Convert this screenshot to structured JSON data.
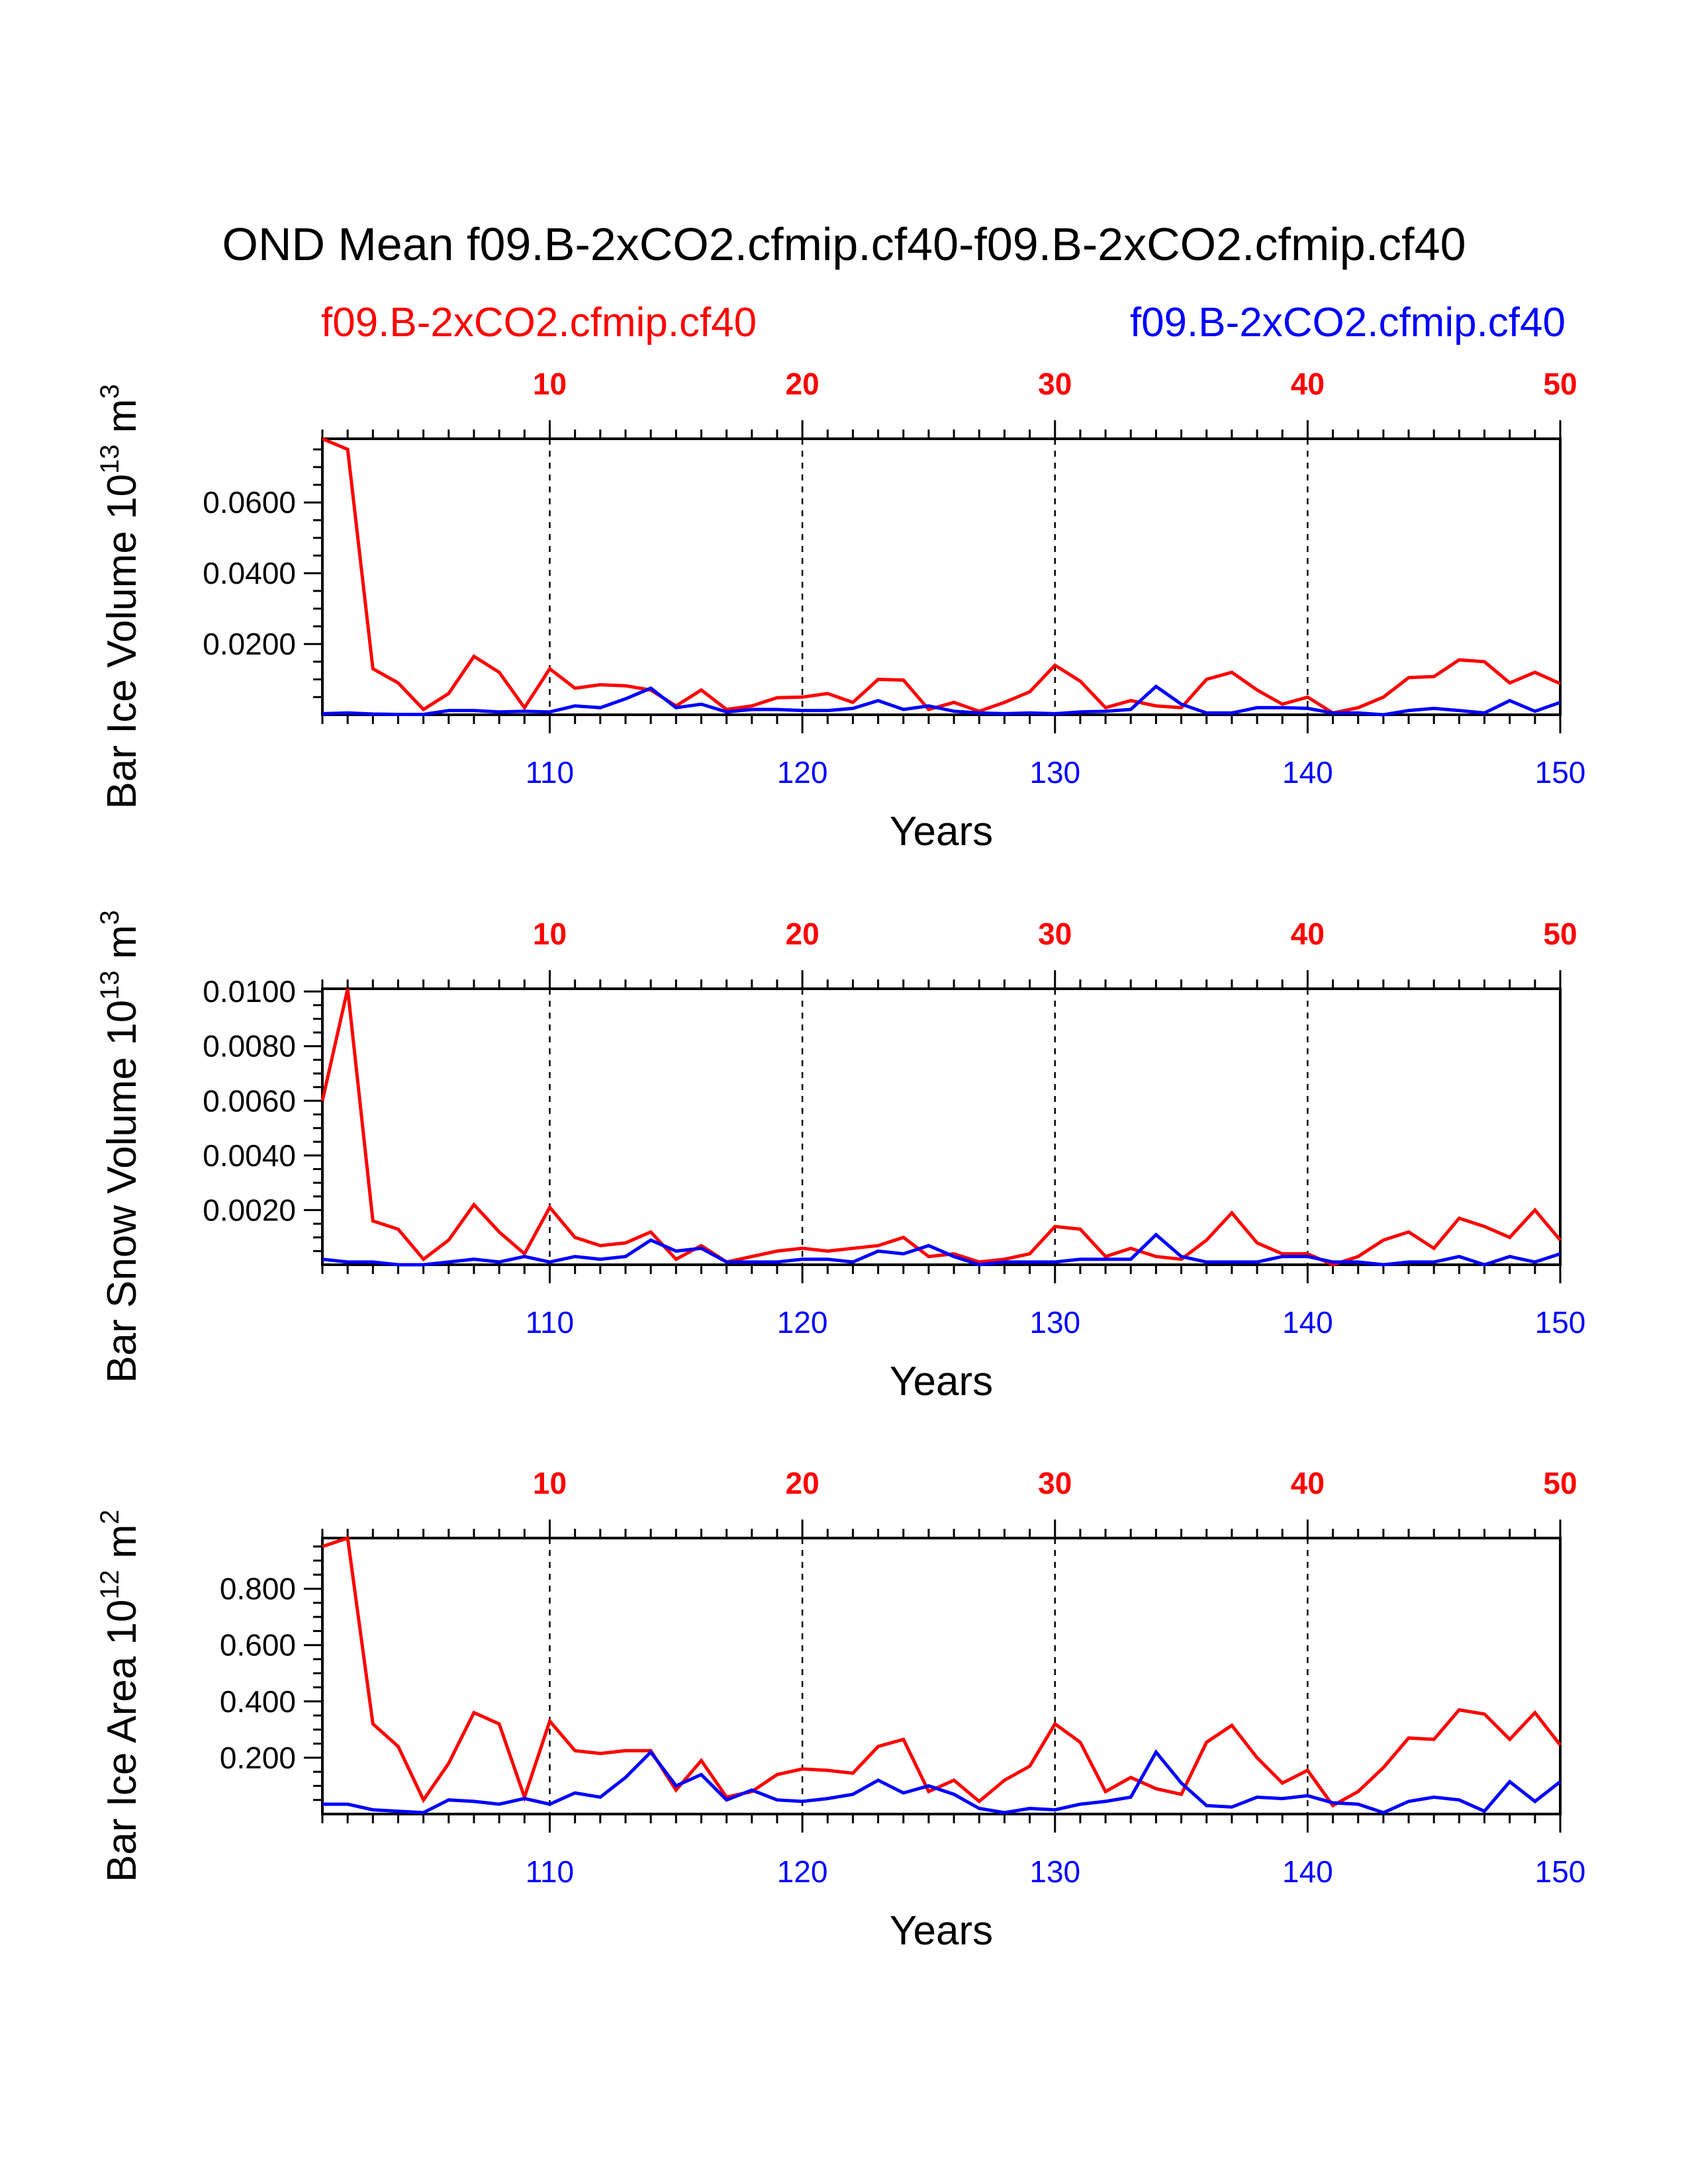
{
  "title": "OND Mean f09.B-2xCO2.cfmip.cf40-f09.B-2xCO2.cfmip.cf40",
  "legend": {
    "left_label": "f09.B-2xCO2.cfmip.cf40",
    "right_label": "f09.B-2xCO2.cfmip.cf40",
    "left_color": "#ff0000",
    "right_color": "#0000ff"
  },
  "chart_data": [
    {
      "type": "line",
      "ylabel": "Bar Ice Volume 10",
      "ylabel_exp": "13",
      "ylabel_unit": " m",
      "ylabel_unit_exp": "3",
      "xlabel": "Years",
      "top_x": {
        "range": [
          1,
          50
        ],
        "ticks": [
          "10",
          "20",
          "30",
          "40",
          "50"
        ],
        "color": "#ff0000"
      },
      "bottom_x": {
        "range": [
          101,
          150
        ],
        "ticks": [
          "110",
          "120",
          "130",
          "140",
          "150"
        ],
        "color": "#0000ff"
      },
      "ylim": [
        0,
        0.078
      ],
      "yticks": [
        0.02,
        0.04,
        0.06
      ],
      "ytick_labels": [
        "0.0200",
        "0.0400",
        "0.0600"
      ],
      "series": [
        {
          "name": "f09.B-2xCO2.cfmip.cf40",
          "color": "#ff0000",
          "values": [
            0.078,
            0.075,
            0.013,
            0.009,
            0.0015,
            0.006,
            0.0165,
            0.012,
            0.002,
            0.013,
            0.0075,
            0.0085,
            0.0082,
            0.007,
            0.0025,
            0.007,
            0.0015,
            0.0025,
            0.0048,
            0.005,
            0.006,
            0.0035,
            0.01,
            0.0098,
            0.0015,
            0.0035,
            0.001,
            0.0035,
            0.0065,
            0.014,
            0.0095,
            0.002,
            0.004,
            0.0025,
            0.002,
            0.01,
            0.012,
            0.007,
            0.003,
            0.005,
            0.0005,
            0.002,
            0.005,
            0.0105,
            0.0108,
            0.0155,
            0.015,
            0.009,
            0.012,
            0.0088
          ]
        },
        {
          "name": "f09.B-2xCO2.cfmip.cf40",
          "color": "#0000ff",
          "values": [
            0.0003,
            0.0005,
            0.0002,
            0.0001,
            0.0001,
            0.0012,
            0.0012,
            0.0008,
            0.001,
            0.0008,
            0.0025,
            0.002,
            0.0045,
            0.0075,
            0.002,
            0.003,
            0.0008,
            0.0015,
            0.0015,
            0.0012,
            0.0012,
            0.0018,
            0.004,
            0.0015,
            0.0025,
            0.001,
            0.0005,
            0.0003,
            0.0005,
            0.0003,
            0.0008,
            0.001,
            0.0015,
            0.008,
            0.003,
            0.0005,
            0.0005,
            0.002,
            0.002,
            0.0018,
            0.0005,
            0.0005,
            0.0,
            0.0012,
            0.0018,
            0.0012,
            0.0005,
            0.004,
            0.001,
            0.0035
          ]
        }
      ]
    },
    {
      "type": "line",
      "ylabel": "Bar Snow Volume 10",
      "ylabel_exp": "13",
      "ylabel_unit": " m",
      "ylabel_unit_exp": "3",
      "xlabel": "Years",
      "top_x": {
        "range": [
          1,
          50
        ],
        "ticks": [
          "10",
          "20",
          "30",
          "40",
          "50"
        ],
        "color": "#ff0000"
      },
      "bottom_x": {
        "range": [
          101,
          150
        ],
        "ticks": [
          "110",
          "120",
          "130",
          "140",
          "150"
        ],
        "color": "#0000ff"
      },
      "ylim": [
        0,
        0.0101
      ],
      "yticks": [
        0.002,
        0.004,
        0.006,
        0.008,
        0.01
      ],
      "ytick_labels": [
        "0.0020",
        "0.0040",
        "0.0060",
        "0.0080",
        "0.0100"
      ],
      "series": [
        {
          "name": "f09.B-2xCO2.cfmip.cf40",
          "color": "#ff0000",
          "values": [
            0.006,
            0.0101,
            0.0016,
            0.0013,
            0.0002,
            0.0009,
            0.0022,
            0.0012,
            0.0004,
            0.0021,
            0.001,
            0.0007,
            0.0008,
            0.0012,
            0.0002,
            0.0007,
            0.0001,
            0.0003,
            0.0005,
            0.0006,
            0.0005,
            0.0006,
            0.0007,
            0.001,
            0.0003,
            0.0004,
            0.0001,
            0.0002,
            0.0004,
            0.0014,
            0.0013,
            0.0003,
            0.0006,
            0.0003,
            0.0002,
            0.0009,
            0.0019,
            0.0008,
            0.0004,
            0.0004,
            0.0,
            0.0003,
            0.0009,
            0.0012,
            0.0006,
            0.0017,
            0.0014,
            0.001,
            0.002,
            0.0009
          ]
        },
        {
          "name": "f09.B-2xCO2.cfmip.cf40",
          "color": "#0000ff",
          "values": [
            0.0002,
            0.0001,
            0.0001,
            0.0,
            0.0,
            0.0001,
            0.0002,
            0.0001,
            0.0003,
            0.0001,
            0.0003,
            0.0002,
            0.0003,
            0.0009,
            0.0005,
            0.0006,
            0.0001,
            0.0001,
            0.0001,
            0.0002,
            0.0002,
            0.0001,
            0.0005,
            0.0004,
            0.0007,
            0.0003,
            0.0,
            0.0001,
            0.0001,
            0.0001,
            0.0002,
            0.0002,
            0.0002,
            0.0011,
            0.0003,
            0.0001,
            0.0001,
            0.0001,
            0.0003,
            0.0003,
            0.0001,
            0.0001,
            0.0,
            0.0001,
            0.0001,
            0.0003,
            0.0,
            0.0003,
            0.0001,
            0.0004
          ]
        }
      ]
    },
    {
      "type": "line",
      "ylabel": "Bar Ice Area 10",
      "ylabel_exp": "12",
      "ylabel_unit": " m",
      "ylabel_unit_exp": "2",
      "xlabel": "Years",
      "top_x": {
        "range": [
          1,
          50
        ],
        "ticks": [
          "10",
          "20",
          "30",
          "40",
          "50"
        ],
        "color": "#ff0000"
      },
      "bottom_x": {
        "range": [
          101,
          150
        ],
        "ticks": [
          "110",
          "120",
          "130",
          "140",
          "150"
        ],
        "color": "#0000ff"
      },
      "ylim": [
        0,
        0.98
      ],
      "yticks": [
        0.2,
        0.4,
        0.6,
        0.8
      ],
      "ytick_labels": [
        "0.200",
        "0.400",
        "0.600",
        "0.800"
      ],
      "series": [
        {
          "name": "f09.B-2xCO2.cfmip.cf40",
          "color": "#ff0000",
          "values": [
            0.95,
            0.98,
            0.32,
            0.24,
            0.05,
            0.18,
            0.36,
            0.32,
            0.06,
            0.33,
            0.225,
            0.215,
            0.225,
            0.225,
            0.085,
            0.19,
            0.06,
            0.08,
            0.14,
            0.16,
            0.155,
            0.145,
            0.24,
            0.265,
            0.08,
            0.12,
            0.045,
            0.12,
            0.17,
            0.32,
            0.255,
            0.08,
            0.13,
            0.09,
            0.07,
            0.255,
            0.315,
            0.2,
            0.11,
            0.155,
            0.03,
            0.08,
            0.165,
            0.27,
            0.265,
            0.37,
            0.355,
            0.265,
            0.36,
            0.245
          ]
        },
        {
          "name": "f09.B-2xCO2.cfmip.cf40",
          "color": "#0000ff",
          "values": [
            0.035,
            0.035,
            0.015,
            0.01,
            0.005,
            0.05,
            0.045,
            0.035,
            0.055,
            0.035,
            0.075,
            0.06,
            0.13,
            0.22,
            0.1,
            0.14,
            0.05,
            0.085,
            0.05,
            0.045,
            0.055,
            0.07,
            0.12,
            0.075,
            0.1,
            0.07,
            0.02,
            0.005,
            0.02,
            0.015,
            0.035,
            0.045,
            0.06,
            0.22,
            0.11,
            0.03,
            0.025,
            0.06,
            0.055,
            0.065,
            0.04,
            0.035,
            0.005,
            0.045,
            0.06,
            0.05,
            0.01,
            0.115,
            0.045,
            0.115
          ]
        }
      ]
    }
  ]
}
